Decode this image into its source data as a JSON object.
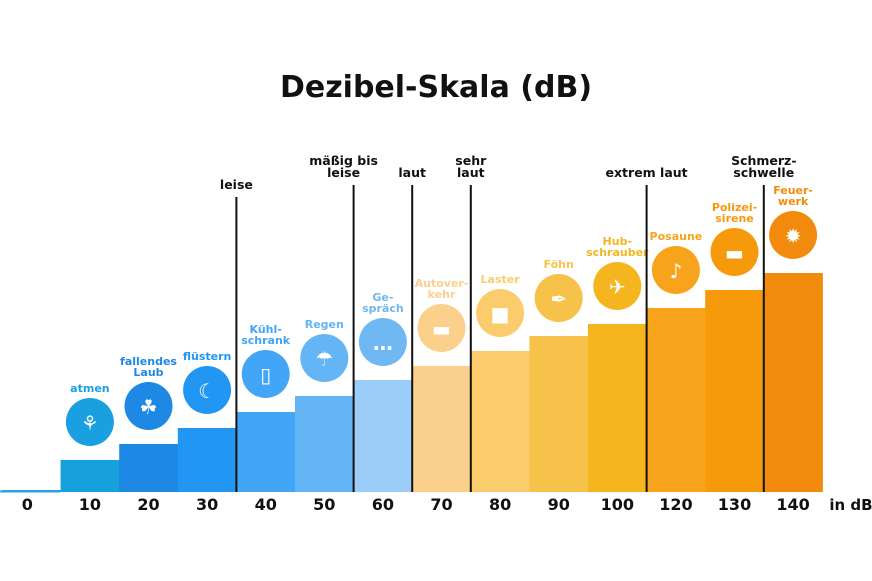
{
  "chart_data": {
    "type": "bar",
    "title": "Dezibel-Skala (dB)",
    "xlabel": "in dB",
    "ylabel": "",
    "grid": false,
    "categories": [
      "0",
      "10",
      "20",
      "30",
      "40",
      "50",
      "60",
      "70",
      "80",
      "90",
      "100",
      "120",
      "130",
      "140"
    ],
    "values": [
      0,
      10,
      20,
      30,
      40,
      50,
      60,
      70,
      80,
      90,
      100,
      120,
      130,
      140
    ],
    "examples": [
      "",
      "atmen",
      "fallendes Laub",
      "flüstern",
      "Kühl-schrank",
      "Regen",
      "Ge-spräch",
      "Autover-kehr",
      "Laster",
      "Föhn",
      "Hub-schrauber",
      "Posaune",
      "Polizei-sirene",
      "Feuer-werk"
    ],
    "icons": [
      "",
      "lungs-icon",
      "leaves-icon",
      "whisper-face-icon",
      "fridge-icon",
      "rain-cloud-icon",
      "speech-bubbles-icon",
      "car-icon",
      "truck-icon",
      "hair-dryer-icon",
      "helicopter-icon",
      "trombone-icon",
      "police-car-icon",
      "fireworks-icon"
    ],
    "colors": [
      "#29a3e0",
      "#16a0dc",
      "#1e88e5",
      "#2196f3",
      "#42a5f5",
      "#64b5f6",
      "#9ccdf8",
      "#fbcf8c",
      "#fbcc6c",
      "#f7c249",
      "#f5b51f",
      "#f7a41c",
      "#f69a0c",
      "#f28b0d"
    ],
    "thresholds": [
      {
        "at": "40",
        "label": "leise"
      },
      {
        "at": "60",
        "label": "mäßig bis leise"
      },
      {
        "at": "70",
        "label": "laut"
      },
      {
        "at": "80",
        "label": "sehr laut"
      },
      {
        "at": "120",
        "label": "extrem laut"
      },
      {
        "at": "140",
        "label": "Schmerz-schwelle"
      }
    ]
  }
}
